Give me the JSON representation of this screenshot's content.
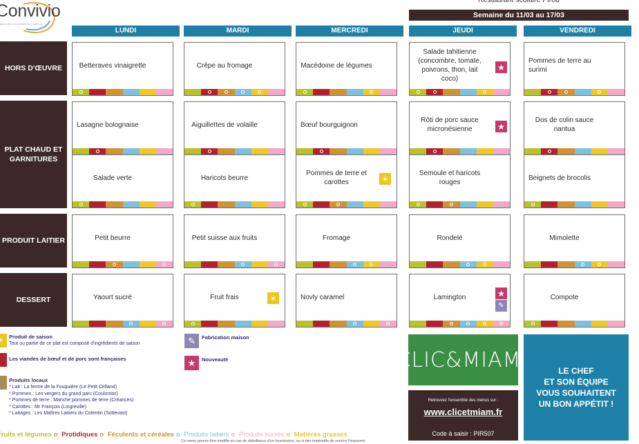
{
  "brand": {
    "name": "Convivio",
    "tagline": "RESTAURATION ENTREPRISE & SERVICES"
  },
  "restaurant": "Restaurant scolaire Pirou",
  "week": "Semaine du 11/03 au 17/03",
  "days": [
    "LUNDI",
    "MARDI",
    "MERCREDI",
    "JEUDI",
    "VENDREDI"
  ],
  "rows": {
    "hors_doeuvre": "HORS D'ŒUVRE",
    "plat_chaud": "PLAT CHAUD ET GARNITURES",
    "produit_laitier": "PRODUIT LAITIER",
    "dessert": "DESSERT"
  },
  "menu": {
    "hors_doeuvre": [
      "Betteraves vinaigrette",
      "Crêpe au fromage",
      "Macédoine de légumes",
      "Salade tahitienne (concombre, tomate, poivrons, thon, lait coco)",
      "Pommes de terre au surimi"
    ],
    "plat": [
      "Lasagne bolognaise",
      "Aiguillettes de volaille",
      "Bœuf bourguignon",
      "Rôti de porc sauce micronésienne",
      "Dos de colin sauce nantua"
    ],
    "garniture": [
      "Salade verte",
      "Haricots beurre",
      "Pommes de terre et carottes",
      "Semoule et haricots rouges",
      "Beignets de brocolis"
    ],
    "laitier": [
      "Petit beurre",
      "Petit suisse aux fruits",
      "Fromage",
      "Rondelé",
      "Mimolette"
    ],
    "dessert": [
      "Yaourt sucré",
      "Fruit frais",
      "Novly caramel",
      "Lamington",
      "Compote"
    ]
  },
  "stripe_colors": {
    "green": "#b7c22d",
    "red": "#b3212f",
    "orange": "#cf9336",
    "blue": "#7dc1de",
    "yellow": "#ecc82a",
    "pink": "#f2a9c7"
  },
  "icons": {
    "season": "sun-icon",
    "new": "star-icon",
    "homemade": "whisk-icon"
  },
  "legend": {
    "season_title": "Produit de saison",
    "season_text": "Tout ou partie de ce plat est composé d'ingrédients de saison",
    "meat_title": "Les viandes de bœuf et de porc sont françaises",
    "local_title": "Produits locaux",
    "local_items": [
      "* Lait : La ferme de la Fouquière (Le Petit Celland)",
      "* Pommes : Les vergers du grand parc (Coulombs)",
      "* Pommes de terre : Manche pommes de terre (Créances)",
      "* Carottes : Mr François (Lingreville)",
      "* Laitages : Les Maîtres Laitiers du Cotentin (Sottevast)"
    ],
    "homemade_title": "Fabrication maison",
    "new_title": "Nouveauté"
  },
  "food_groups": [
    {
      "label": "Fruits et légumes",
      "color": "#b7c22d"
    },
    {
      "label": "Protidiques",
      "color": "#b3212f"
    },
    {
      "label": "Féculents et céréales",
      "color": "#cf9336"
    },
    {
      "label": "Produits laitiers",
      "color": "#7dc1de"
    },
    {
      "label": "Produits sucrés",
      "color": "#f2a9c7"
    },
    {
      "label": "Matières grasses",
      "color": "#ecc82a"
    }
  ],
  "disclaimer": "Ce menu pourra être modifié en cas de défaillance d'un fournisseur, ou si des impératifs de service l'imposent",
  "clicmiam": {
    "logo": "CLIC&MIAM!",
    "caption": "Retrouvez l'ensemble des menus sur :",
    "url": "www.clicetmiam.fr",
    "code": "Code à saisir : PIR507"
  },
  "chef": [
    "LE CHEF",
    "ET SON ÉQUIPE",
    "VOUS SOUHAITENT",
    "UN BON APPÉTIT !"
  ]
}
